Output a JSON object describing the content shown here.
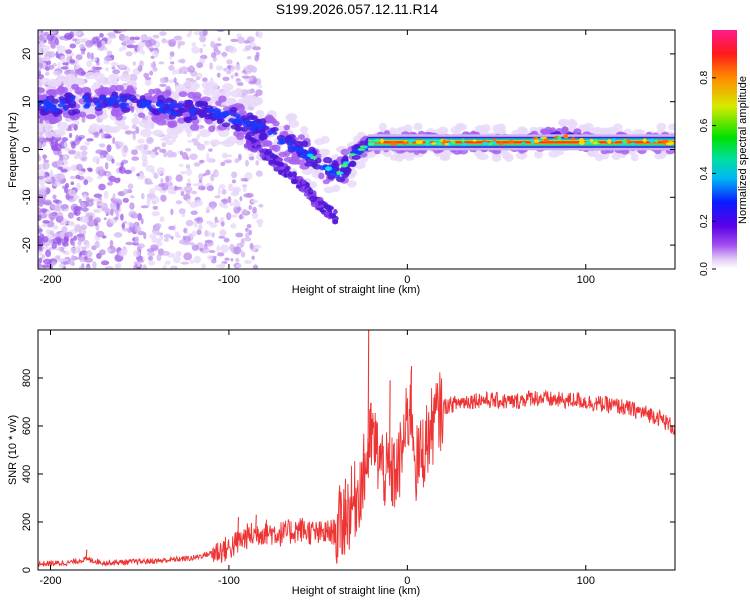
{
  "figure": {
    "title": "S199.2026.057.12.11.R14"
  },
  "chart_data": [
    {
      "type": "heatmap",
      "title": "S199.2026.057.12.11.R14",
      "xlabel": "Height of straight line (km)",
      "ylabel": "Frequency (Hz)",
      "xlim": [
        -207,
        150
      ],
      "ylim": [
        -25,
        25
      ],
      "xticks": [
        -200,
        -100,
        0,
        100
      ],
      "xtick_labels": [
        "-200",
        "-100",
        "0",
        "100"
      ],
      "yticks": [
        -20,
        -10,
        0,
        10,
        20
      ],
      "ytick_labels": [
        "-20",
        "-10",
        "0",
        "10",
        "20"
      ],
      "colorbar": {
        "label": "Normalized spectral amplitude",
        "range": [
          0,
          1
        ],
        "ticks": [
          0.0,
          0.2,
          0.4,
          0.6,
          0.8
        ],
        "tick_labels": [
          "0.0",
          "0.2",
          "0.4",
          "0.6",
          "0.8"
        ],
        "colormap": "rainbow (white-purple-blue-cyan-green-yellow-red-magenta)"
      },
      "ridge": {
        "description": "Doppler frequency ridge: scattered noise below ~-120 km, descending branch to ~-40 km, then flat near 1.5 Hz",
        "x": [
          -200,
          -180,
          -160,
          -140,
          -120,
          -100,
          -80,
          -60,
          -45,
          -38,
          -30,
          -20,
          -10,
          0,
          20,
          40,
          60,
          80,
          90,
          100,
          120,
          150
        ],
        "y": [
          9,
          10,
          10,
          9,
          8,
          7,
          4,
          0,
          -4,
          -5,
          -1,
          1.5,
          1.5,
          1.5,
          1.5,
          1.5,
          1.5,
          2.2,
          2.5,
          1.5,
          1.5,
          1.5
        ]
      }
    },
    {
      "type": "line",
      "xlabel": "Height of straight line (km)",
      "ylabel": "SNR (10 * v/v)",
      "xlim": [
        -207,
        150
      ],
      "ylim": [
        0,
        1000
      ],
      "xticks": [
        -200,
        -100,
        0,
        100
      ],
      "xtick_labels": [
        "-200",
        "-100",
        "0",
        "100"
      ],
      "yticks": [
        0,
        200,
        400,
        600,
        800
      ],
      "ytick_labels": [
        "0",
        "200",
        "400",
        "600",
        "800"
      ],
      "series": [
        {
          "name": "SNR",
          "color": "#ee3333",
          "x": [
            -207,
            -190,
            -180,
            -170,
            -150,
            -140,
            -120,
            -110,
            -100,
            -90,
            -80,
            -70,
            -60,
            -50,
            -40,
            -30,
            -25,
            -20,
            -15,
            -10,
            -5,
            0,
            2,
            5,
            10,
            15,
            20,
            25,
            30,
            40,
            50,
            60,
            70,
            80,
            90,
            95,
            100,
            110,
            120,
            130,
            140,
            150
          ],
          "y": [
            25,
            30,
            45,
            30,
            35,
            38,
            50,
            70,
            90,
            140,
            160,
            150,
            170,
            150,
            160,
            280,
            380,
            560,
            450,
            380,
            420,
            620,
            700,
            430,
            520,
            620,
            680,
            690,
            700,
            710,
            705,
            700,
            720,
            710,
            705,
            710,
            700,
            690,
            680,
            660,
            640,
            590
          ]
        }
      ],
      "spikes": {
        "x": [
          -180,
          -95,
          -85,
          -35,
          -22,
          -10,
          2
        ],
        "y": [
          85,
          220,
          230,
          380,
          1000,
          790,
          850
        ]
      }
    }
  ]
}
